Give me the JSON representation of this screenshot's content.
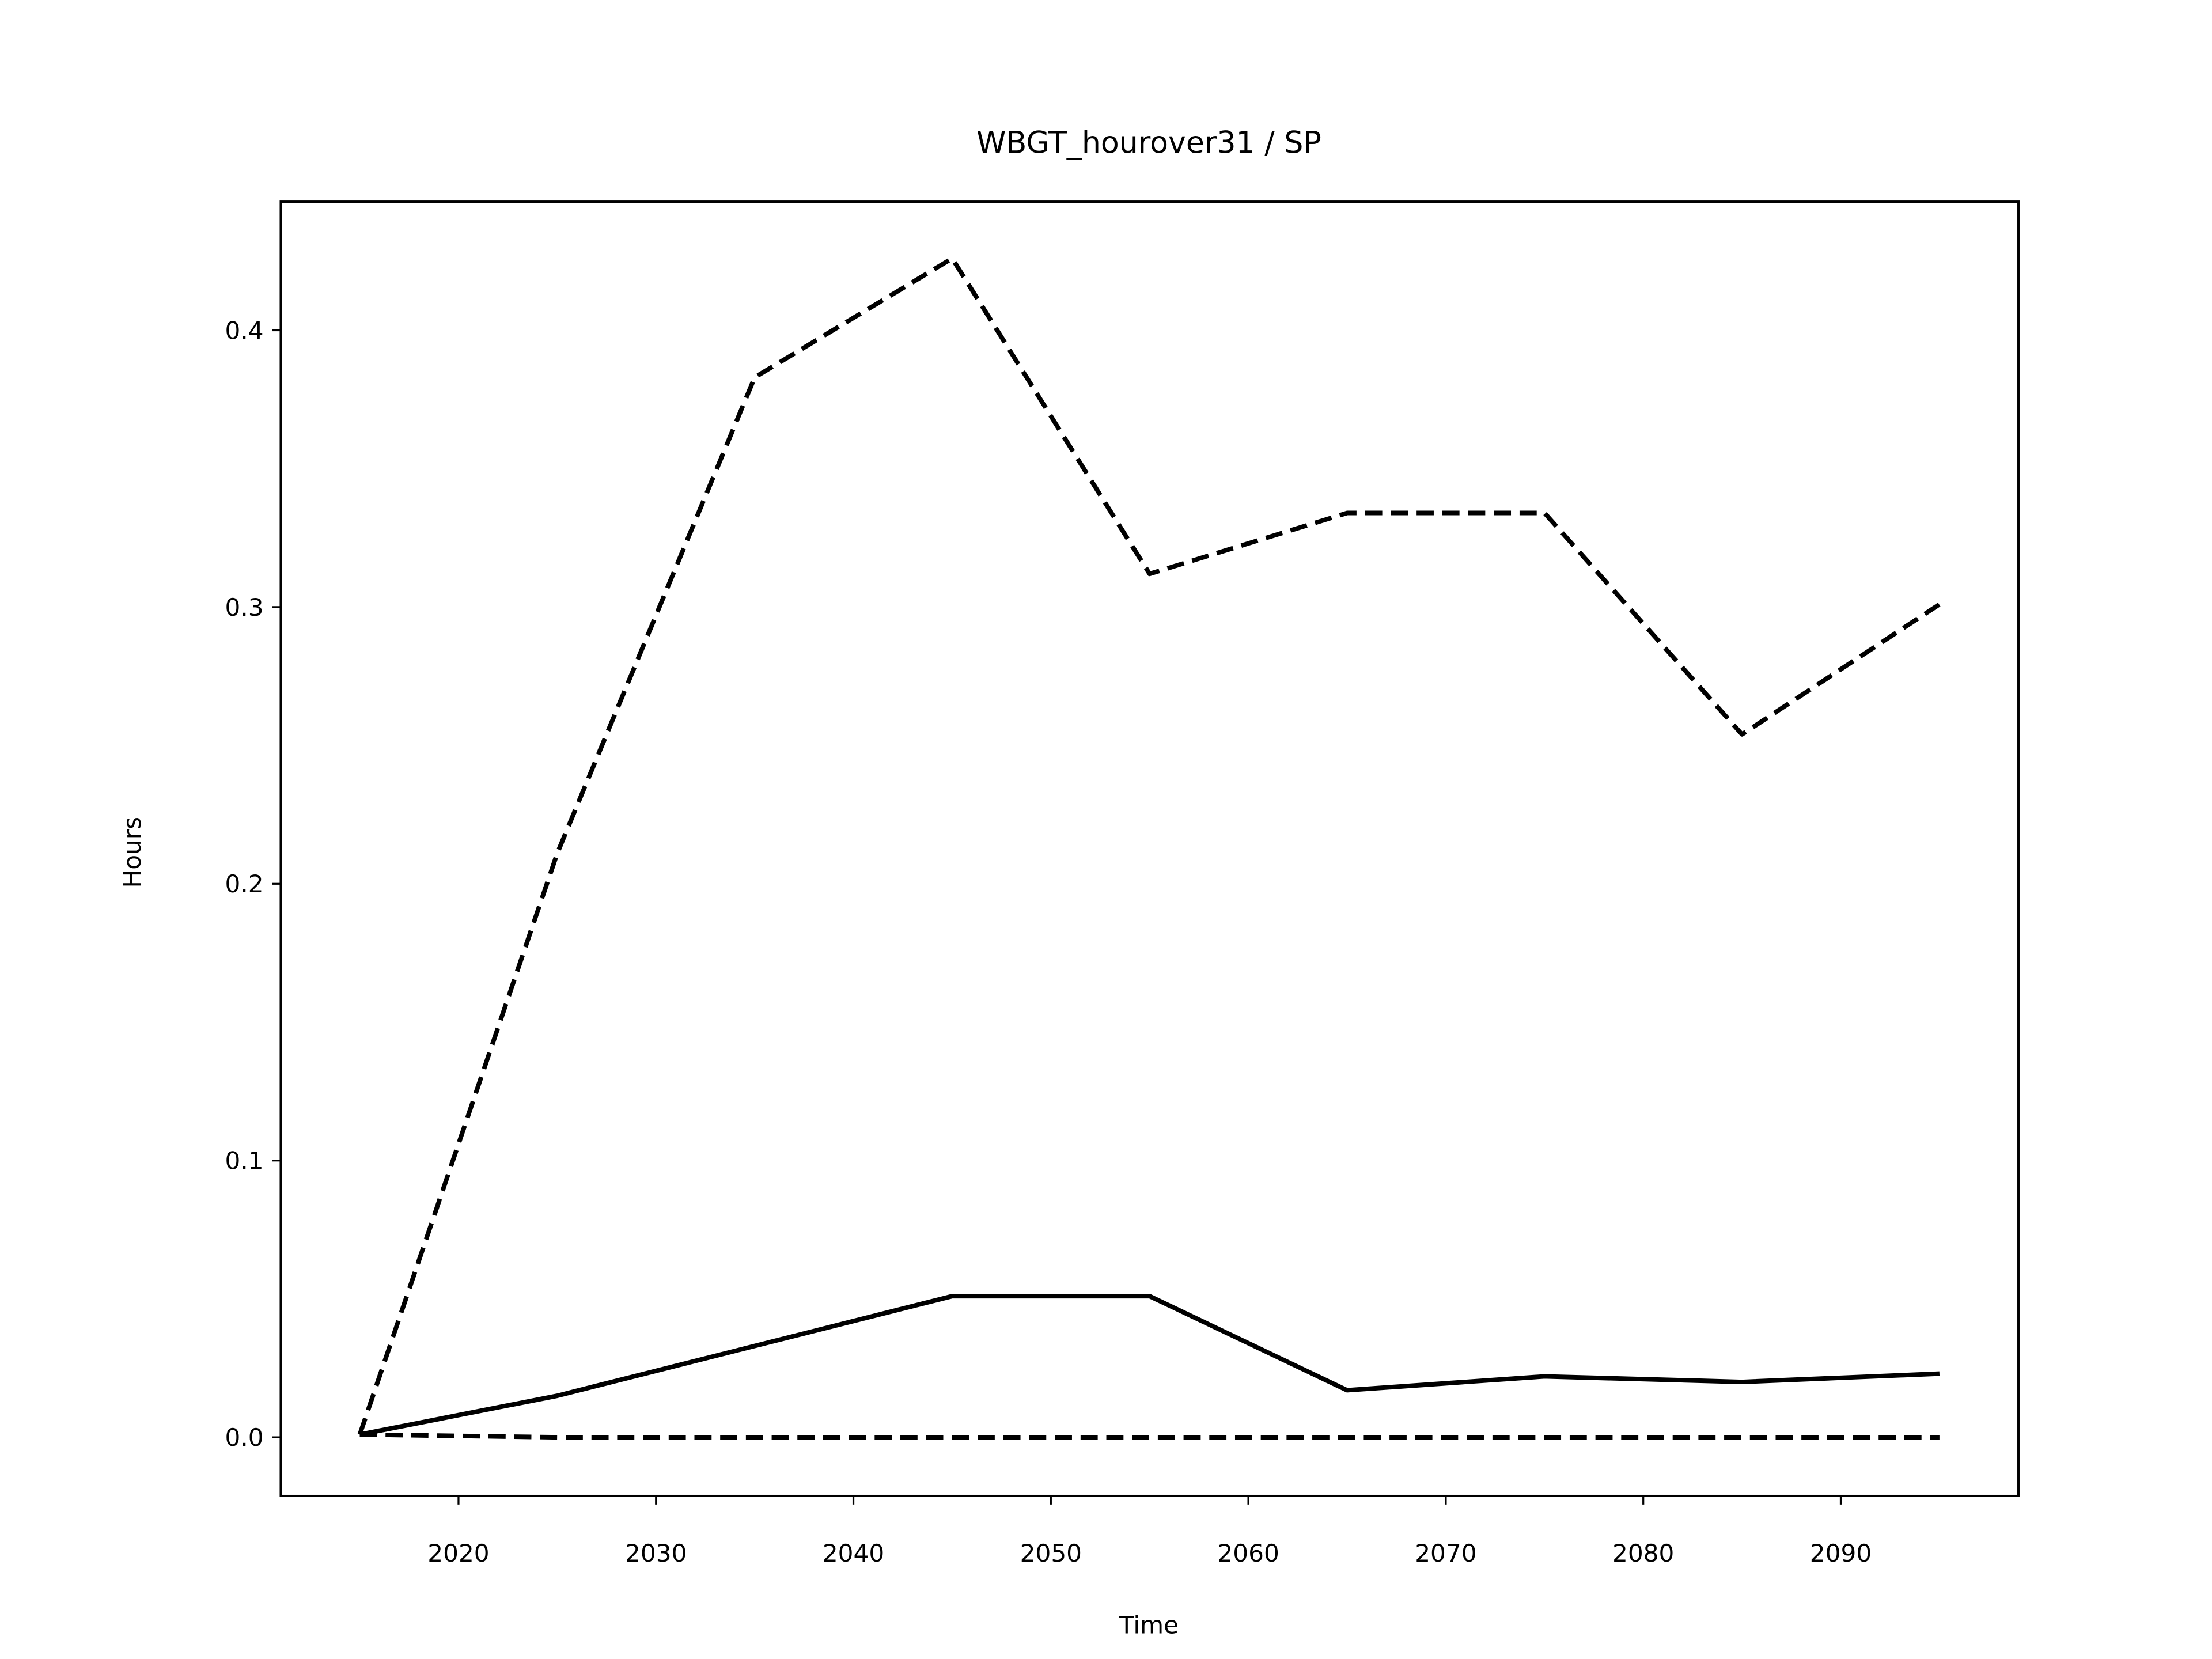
{
  "chart_data": {
    "type": "line",
    "title": "WBGT_hourover31 / SP",
    "xlabel": "Time",
    "ylabel": "Hours",
    "x": [
      2015,
      2025,
      2035,
      2045,
      2055,
      2065,
      2075,
      2085,
      2095
    ],
    "series": [
      {
        "color": "#000000",
        "linestyle": "dashed",
        "values": [
          0.001,
          0.211,
          0.383,
          0.426,
          0.312,
          0.334,
          0.334,
          0.254,
          0.301
        ]
      },
      {
        "color": "#000000",
        "linestyle": "solid",
        "values": [
          0.001,
          0.015,
          0.033,
          0.051,
          0.051,
          0.017,
          0.022,
          0.02,
          0.023
        ]
      },
      {
        "color": "#000000",
        "linestyle": "dashed",
        "values": [
          0.001,
          0.0,
          0.0,
          0.0,
          0.0,
          0.0,
          0.0,
          0.0,
          0.0
        ]
      }
    ],
    "xlim": [
      2011,
      2099
    ],
    "ylim": [
      -0.0212,
      0.4465
    ],
    "xticks": [
      2020,
      2030,
      2040,
      2050,
      2060,
      2070,
      2080,
      2090
    ],
    "yticks": [
      {
        "value": 0,
        "label": "0.0"
      },
      0.1,
      0.2,
      0.3,
      0.4
    ],
    "grid": false
  }
}
